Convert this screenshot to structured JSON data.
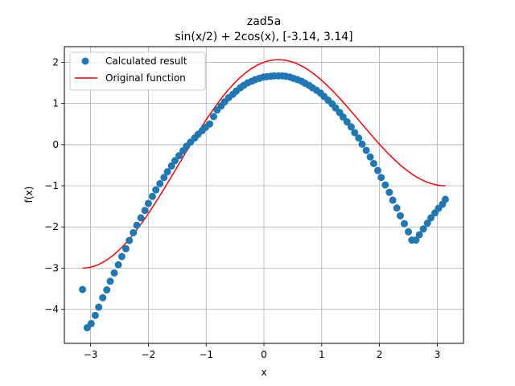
{
  "chart_data": {
    "type": "scatter+line",
    "title": "zad5a",
    "subtitle": "sin(x/2) + 2cos(x), [-3.14, 3.14]",
    "xlabel": "x",
    "ylabel": "f(x)",
    "xlim": [
      -3.454,
      3.454
    ],
    "ylim": [
      -4.83,
      2.38
    ],
    "xticks": [
      -3,
      -2,
      -1,
      0,
      1,
      2,
      3
    ],
    "xtick_labels": [
      "−3",
      "−2",
      "−1",
      "0",
      "1",
      "2",
      "3"
    ],
    "yticks": [
      -4,
      -3,
      -2,
      -1,
      0,
      1,
      2
    ],
    "ytick_labels": [
      "−4",
      "−3",
      "−2",
      "−1",
      "0",
      "1",
      "2"
    ],
    "grid": true,
    "legend_position": "top-left",
    "series": [
      {
        "name": "Calculated result",
        "kind": "scatter",
        "color": "#1f77b4",
        "x": [
          -3.14,
          -3.06,
          -2.99,
          -2.92,
          -2.86,
          -2.79,
          -2.72,
          -2.66,
          -2.59,
          -2.52,
          -2.46,
          -2.39,
          -2.33,
          -2.26,
          -2.2,
          -2.13,
          -2.06,
          -2.0,
          -1.93,
          -1.87,
          -1.8,
          -1.73,
          -1.67,
          -1.6,
          -1.54,
          -1.47,
          -1.4,
          -1.34,
          -1.27,
          -1.2,
          -1.14,
          -1.07,
          -1.01,
          -0.94,
          -0.87,
          -0.81,
          -0.74,
          -0.68,
          -0.61,
          -0.54,
          -0.48,
          -0.41,
          -0.35,
          -0.28,
          -0.21,
          -0.15,
          -0.08,
          -0.01,
          0.05,
          0.12,
          0.18,
          0.25,
          0.32,
          0.38,
          0.45,
          0.51,
          0.58,
          0.65,
          0.71,
          0.78,
          0.84,
          0.91,
          0.98,
          1.04,
          1.11,
          1.18,
          1.24,
          1.31,
          1.37,
          1.44,
          1.51,
          1.57,
          1.64,
          1.7,
          1.77,
          1.84,
          1.9,
          1.97,
          2.03,
          2.1,
          2.17,
          2.23,
          2.3,
          2.36,
          2.43,
          2.5,
          2.56,
          2.63,
          2.69,
          2.76,
          2.83,
          2.89,
          2.96,
          3.02,
          3.09,
          3.14
        ],
        "y": [
          -3.52,
          -4.45,
          -4.35,
          -4.15,
          -3.95,
          -3.72,
          -3.53,
          -3.32,
          -3.12,
          -2.92,
          -2.72,
          -2.53,
          -2.33,
          -2.14,
          -1.96,
          -1.78,
          -1.6,
          -1.43,
          -1.26,
          -1.1,
          -0.95,
          -0.8,
          -0.66,
          -0.52,
          -0.39,
          -0.27,
          -0.15,
          -0.04,
          0.06,
          0.16,
          0.25,
          0.34,
          0.42,
          0.5,
          0.68,
          0.84,
          0.94,
          1.04,
          1.14,
          1.22,
          1.3,
          1.38,
          1.44,
          1.5,
          1.54,
          1.58,
          1.61,
          1.64,
          1.65,
          1.66,
          1.67,
          1.67,
          1.67,
          1.66,
          1.64,
          1.61,
          1.58,
          1.54,
          1.49,
          1.44,
          1.38,
          1.32,
          1.25,
          1.17,
          1.08,
          0.99,
          0.89,
          0.78,
          0.67,
          0.55,
          0.43,
          0.29,
          0.16,
          0.01,
          -0.14,
          -0.3,
          -0.46,
          -0.63,
          -0.8,
          -0.98,
          -1.16,
          -1.35,
          -1.54,
          -1.73,
          -1.92,
          -2.12,
          -2.32,
          -2.32,
          -2.19,
          -2.05,
          -1.91,
          -1.78,
          -1.66,
          -1.55,
          -1.45,
          -1.33
        ]
      },
      {
        "name": "Original function",
        "kind": "line",
        "color": "#ff0000",
        "function": "sin(x/2) + 2cos(x)",
        "domain": [
          -3.14,
          3.14
        ]
      }
    ]
  }
}
